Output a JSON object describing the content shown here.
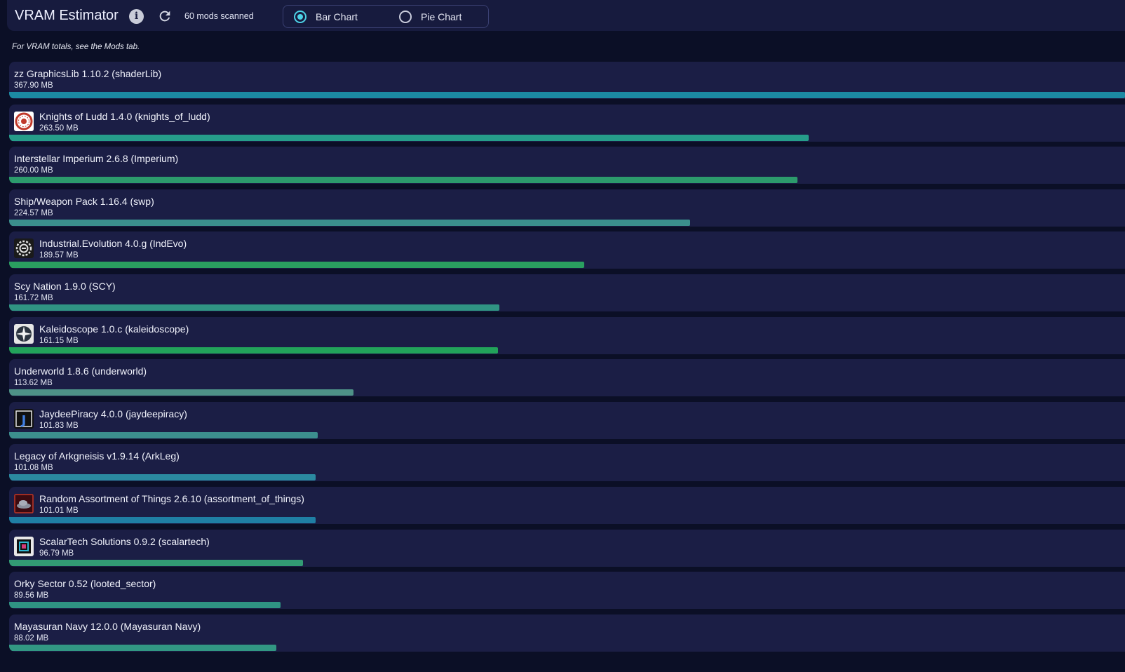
{
  "header": {
    "title": "VRAM Estimator",
    "info_icon": "info-icon",
    "refresh_icon": "refresh-icon",
    "scan_status": "60 mods scanned",
    "chart_type": {
      "options": [
        "Bar Chart",
        "Pie Chart"
      ],
      "selected": "Bar Chart"
    }
  },
  "note": "For VRAM totals, see the Mods tab.",
  "mods": [
    {
      "name": "zz GraphicsLib 1.10.2 (shaderLib)",
      "size": "367.90 MB",
      "mb": 367.9,
      "color": "#1c8aa3",
      "icon": null
    },
    {
      "name": "Knights of Ludd 1.4.0 (knights_of_ludd)",
      "size": "263.50 MB",
      "mb": 263.5,
      "color": "#269d8a",
      "icon": "knights-of-ludd-icon"
    },
    {
      "name": "Interstellar Imperium 2.6.8 (Imperium)",
      "size": "260.00 MB",
      "mb": 260.0,
      "color": "#2c9b6c",
      "icon": null
    },
    {
      "name": "Ship/Weapon Pack 1.16.4 (swp)",
      "size": "224.57 MB",
      "mb": 224.57,
      "color": "#3b8f8c",
      "icon": null
    },
    {
      "name": "Industrial.Evolution 4.0.g (IndEvo)",
      "size": "189.57 MB",
      "mb": 189.57,
      "color": "#2a9f60",
      "icon": "industrial-evolution-icon"
    },
    {
      "name": "Scy Nation 1.9.0 (SCY)",
      "size": "161.72 MB",
      "mb": 161.72,
      "color": "#309483",
      "icon": null
    },
    {
      "name": "Kaleidoscope 1.0.c (kaleidoscope)",
      "size": "161.15 MB",
      "mb": 161.15,
      "color": "#22a35a",
      "icon": "kaleidoscope-icon"
    },
    {
      "name": "Underworld 1.8.6 (underworld)",
      "size": "113.62 MB",
      "mb": 113.62,
      "color": "#4e9287",
      "icon": null
    },
    {
      "name": "JaydeePiracy 4.0.0 (jaydeepiracy)",
      "size": "101.83 MB",
      "mb": 101.83,
      "color": "#3c8f8e",
      "icon": "jaydeepiracy-icon"
    },
    {
      "name": "Legacy of Arkgneisis v1.9.14 (ArkLeg)",
      "size": "101.08 MB",
      "mb": 101.08,
      "color": "#2b8aa0",
      "icon": null
    },
    {
      "name": "Random Assortment of Things 2.6.10 (assortment_of_things)",
      "size": "101.01 MB",
      "mb": 101.01,
      "color": "#1f7fa4",
      "icon": "assortment-of-things-icon"
    },
    {
      "name": "ScalarTech Solutions 0.9.2 (scalartech)",
      "size": "96.79 MB",
      "mb": 96.79,
      "color": "#329b74",
      "icon": "scalartech-icon"
    },
    {
      "name": "Orky Sector 0.52 (looted_sector)",
      "size": "89.56 MB",
      "mb": 89.56,
      "color": "#2f9383",
      "icon": null
    },
    {
      "name": "Mayasuran Navy 12.0.0 (Mayasuran Navy)",
      "size": "88.02 MB",
      "mb": 88.02,
      "color": "#329783",
      "icon": null
    }
  ]
}
